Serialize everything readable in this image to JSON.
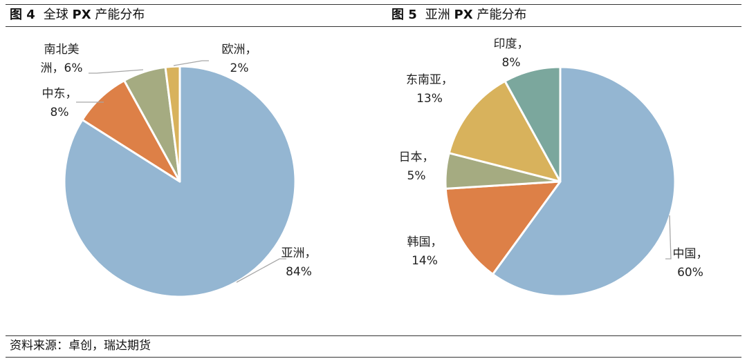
{
  "figures": [
    {
      "number": "图 4",
      "title_pre": "全球 ",
      "title_bold": "PX",
      "title_post": " 产能分布"
    },
    {
      "number": "图 5",
      "title_pre": "亚洲 ",
      "title_bold": "PX",
      "title_post": " 产能分布"
    }
  ],
  "source": "资料来源：卓创，瑞达期货",
  "chart_data": [
    {
      "type": "pie",
      "title": "全球 PX 产能分布",
      "slices": [
        {
          "label": "亚洲",
          "value": 84,
          "value_label": "84%",
          "color": "#94b6d2"
        },
        {
          "label": "中东",
          "value": 8,
          "value_label": "8%",
          "color": "#dd8047"
        },
        {
          "label": "南北美洲",
          "value": 6,
          "value_label": "6%",
          "color": "#a5ab81"
        },
        {
          "label": "欧洲",
          "value": 2,
          "value_label": "2%",
          "color": "#d8b25c"
        }
      ]
    },
    {
      "type": "pie",
      "title": "亚洲 PX 产能分布",
      "slices": [
        {
          "label": "中国",
          "value": 60,
          "value_label": "60%",
          "color": "#94b6d2"
        },
        {
          "label": "韩国",
          "value": 14,
          "value_label": "14%",
          "color": "#dd8047"
        },
        {
          "label": "日本",
          "value": 5,
          "value_label": "5%",
          "color": "#a5ab81"
        },
        {
          "label": "东南亚",
          "value": 13,
          "value_label": "13%",
          "color": "#d8b25c"
        },
        {
          "label": "印度",
          "value": 8,
          "value_label": "8%",
          "color": "#7ba79d"
        }
      ]
    }
  ]
}
